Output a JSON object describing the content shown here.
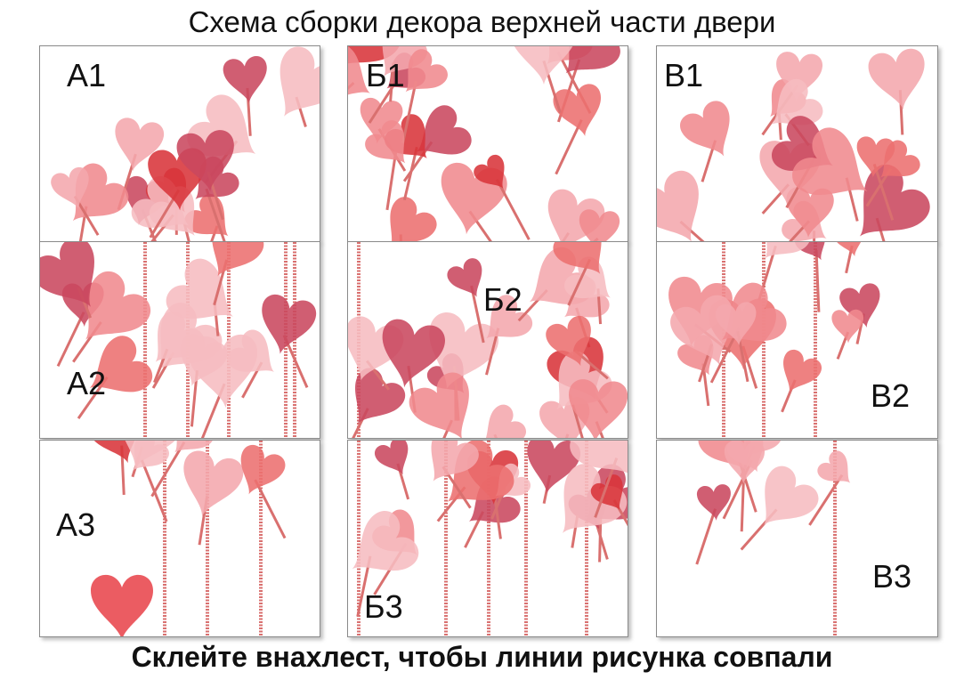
{
  "title": "Схема сборки декора верхней части двери",
  "footer": "Склейте внахлест, чтобы линии рисунка совпали",
  "panels": [
    {
      "id": "A1",
      "label": "А1"
    },
    {
      "id": "B1",
      "label": "Б1"
    },
    {
      "id": "V1",
      "label": "В1"
    },
    {
      "id": "A2",
      "label": "А2"
    },
    {
      "id": "B2",
      "label": "Б2"
    },
    {
      "id": "V2",
      "label": "В2"
    },
    {
      "id": "A3",
      "label": "А3"
    },
    {
      "id": "B3",
      "label": "Б3"
    },
    {
      "id": "V3",
      "label": "В3"
    }
  ],
  "colors": {
    "heart_light": "#f4a7ad",
    "heart_mid": "#ec6f6f",
    "heart_dark": "#d8343a",
    "heart_berry": "#c9485e",
    "stem": "#d9706f",
    "border": "#8a8a8a"
  }
}
